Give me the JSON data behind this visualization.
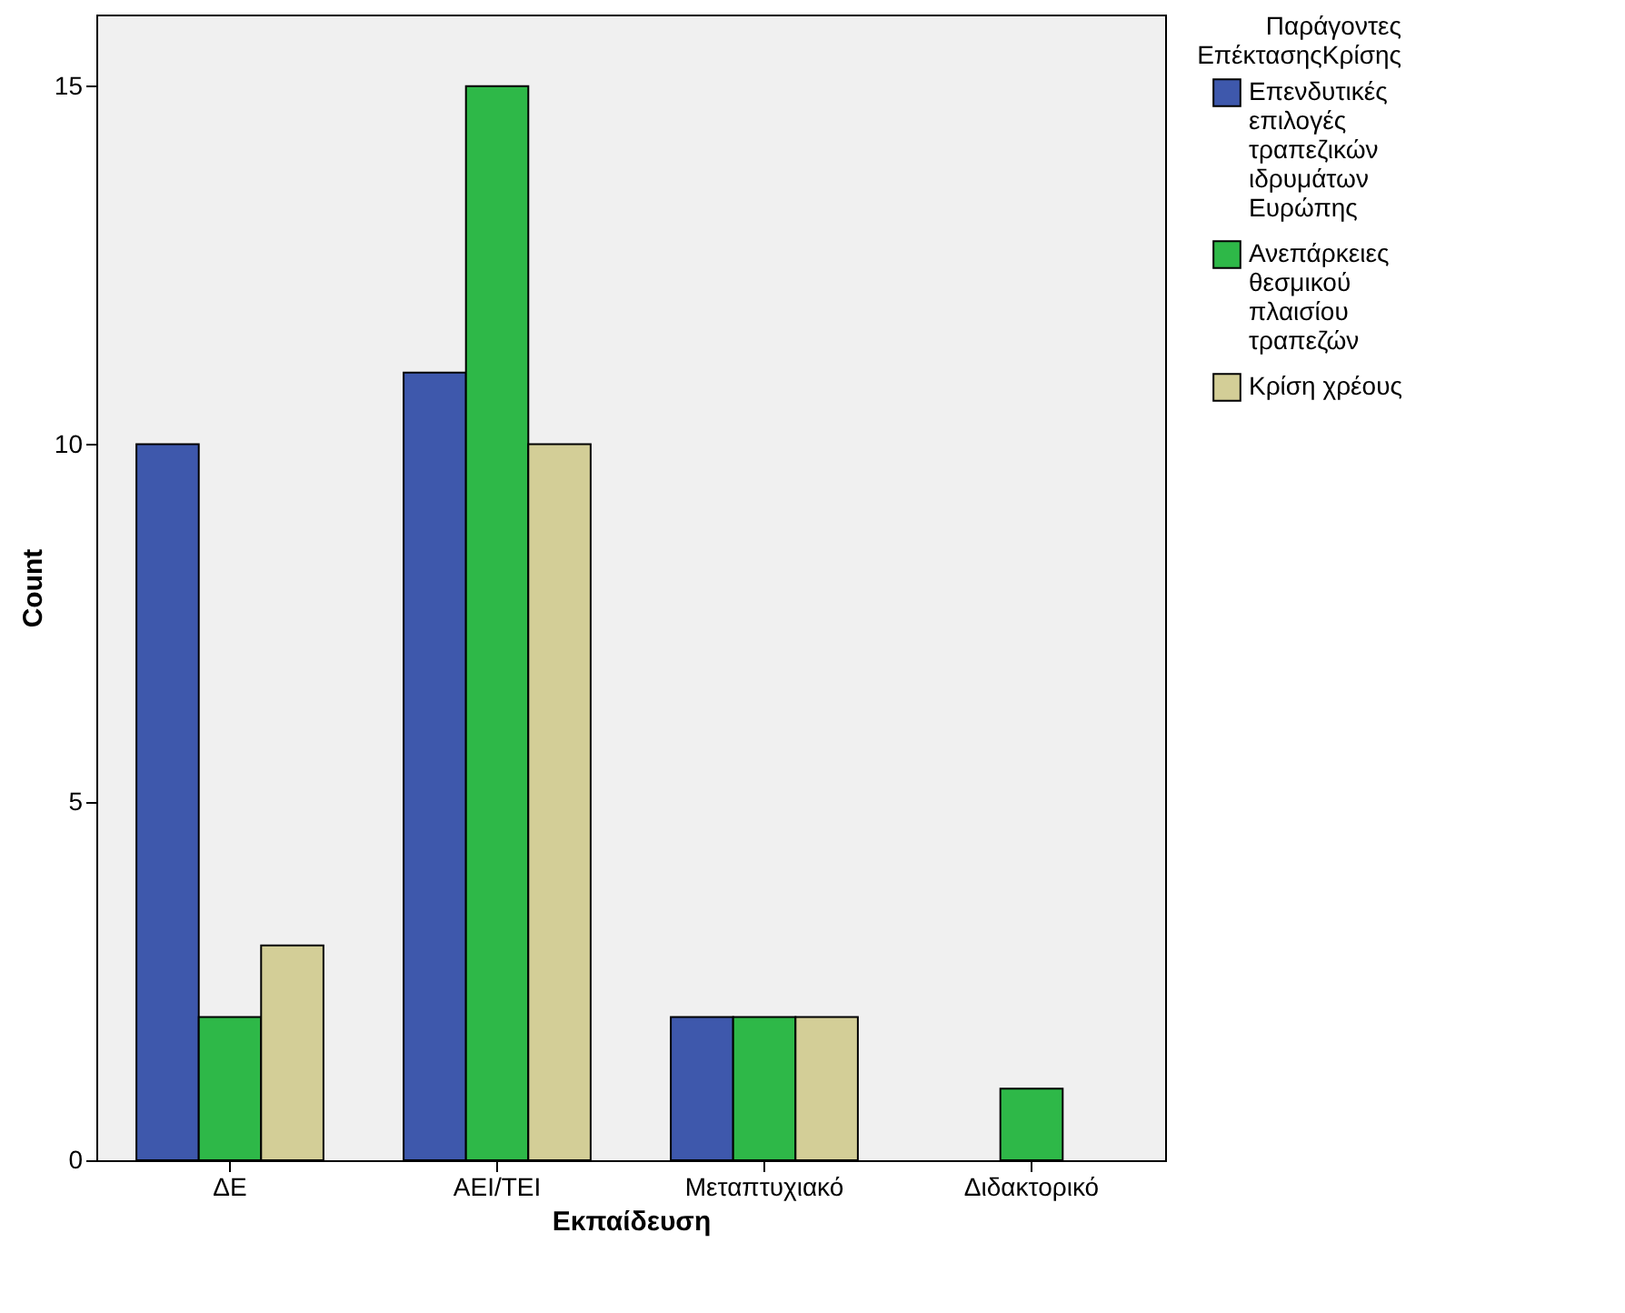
{
  "chart_data": {
    "type": "bar",
    "xlabel": "Εκπαίδευση",
    "ylabel": "Count",
    "legend_title": "Παράγοντες ΕπέκτασηςΚρίσης",
    "categories": [
      "ΔΕ",
      "ΑΕΙ/ΤΕΙ",
      "Μεταπτυχιακό",
      "Διδακτορικό"
    ],
    "series": [
      {
        "name": "Επενδυτικές επιλογές τραπεζικών ιδρυμάτων Ευρώπης",
        "color": "#3e58ac",
        "values": [
          10,
          11,
          2,
          null
        ]
      },
      {
        "name": "Ανεπάρκειες θεσμικού πλαισίου τραπεζών",
        "color": "#2eb848",
        "values": [
          2,
          15,
          2,
          1
        ]
      },
      {
        "name": "Κρίση χρέους",
        "color": "#d3ce97",
        "values": [
          3,
          10,
          2,
          null
        ]
      }
    ],
    "ylim": [
      0,
      16
    ],
    "yticks": [
      0,
      5,
      10,
      15
    ],
    "legend": "top right"
  }
}
